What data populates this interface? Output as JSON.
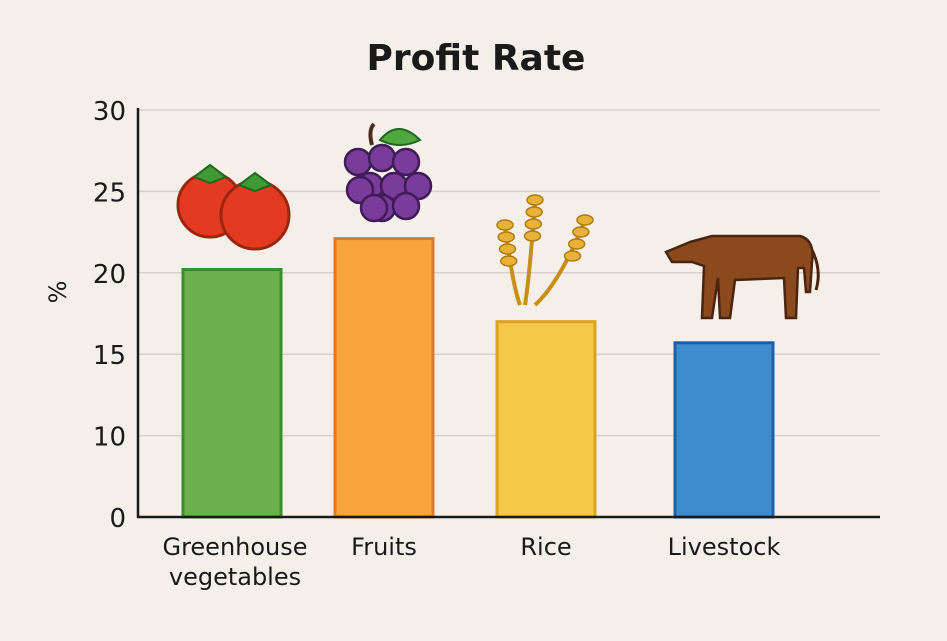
{
  "chart_data": {
    "type": "bar",
    "title": "Profit Rate",
    "xlabel": "",
    "ylabel": "%",
    "yticks": [
      0,
      10,
      15,
      20,
      25,
      30
    ],
    "ylim": [
      0,
      30
    ],
    "grid": true,
    "categories": [
      "Greenhouse vegetables",
      "Fruits",
      "Rice",
      "Livestock"
    ],
    "category_lines": [
      [
        "Greenhouse",
        "vegetables"
      ],
      [
        "Fruits"
      ],
      [
        "Rice"
      ],
      [
        "Livestock"
      ]
    ],
    "values": [
      20.2,
      22.1,
      17.0,
      15.7
    ],
    "colors": [
      {
        "fill": "#6ab04c",
        "stroke": "#3d8b2a"
      },
      {
        "fill": "#f7a43a",
        "stroke": "#e07b22"
      },
      {
        "fill": "#f5c84a",
        "stroke": "#d9a520"
      },
      {
        "fill": "#3e8ccc",
        "stroke": "#1f5fa8"
      }
    ],
    "icons": [
      "tomato-icon",
      "grapes-icon",
      "wheat-icon",
      "cow-icon"
    ]
  }
}
